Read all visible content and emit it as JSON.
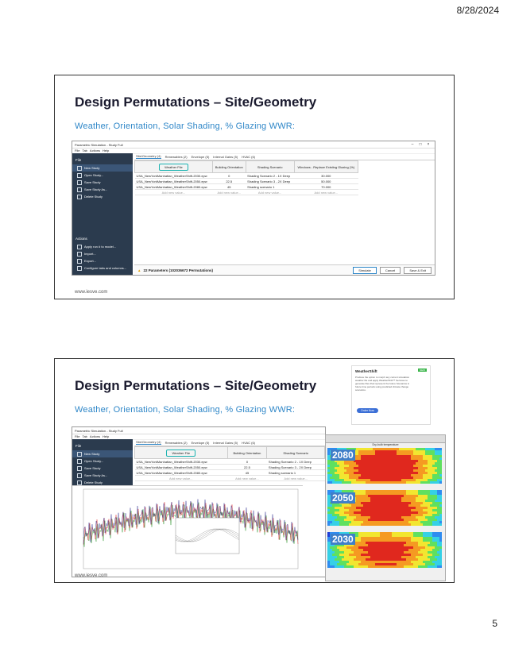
{
  "header": {
    "date": "8/28/2024"
  },
  "page_number": "5",
  "slides": [
    {
      "title": "Design Permutations – Site/Geometry",
      "subtitle": "Weather, Orientation, Solar Shading, % Glazing WWR:",
      "url": "www.iesve.com"
    },
    {
      "title": "Design Permutations – Site/Geometry",
      "subtitle": "Weather, Orientation, Solar Shading, % Glazing WWR:",
      "url": "www.iesve.com"
    }
  ],
  "app": {
    "title": "Parametric Simulation - Study Full",
    "menu": [
      "File",
      "Tab",
      "Actions",
      "Help"
    ],
    "sidebar_header": "File",
    "sidebar_items": [
      "New Study",
      "Open Study...",
      "Save Study",
      "Save Study As...",
      "Delete Study"
    ],
    "actions_header": "Actions",
    "action_items": [
      "Apply run # to model...",
      "Import...",
      "Export...",
      "Configure tabs and columns..."
    ],
    "tabs": [
      "Site/Geometry (4)",
      "Renewables (2)",
      "Envelope (5)",
      "Internal Gains (5)",
      "HVAC (6)"
    ],
    "columns": [
      "Weather File",
      "Building Orientation",
      "Shading Scenario",
      "Windows - Replace Existing Glazing (%)"
    ],
    "rows": [
      [
        "USA_NewYorkManhattan_WeatherShift-2030.epw",
        "0",
        "Shading Scenario 2 - 1X Deep",
        "30.000"
      ],
      [
        "USA_NewYorkManhattan_WeatherShift-2050.epw",
        "22.5",
        "Shading Scenario 3 - 2X Deep",
        "50.000"
      ],
      [
        "USA_NewYorkManhattan_WeatherShift-2080.epw",
        "45",
        "Shading scenario 1",
        "70.000"
      ]
    ],
    "add_new": "Add new value...",
    "status": "22 Parameters (102036672 Permutations)",
    "buttons": {
      "simulate": "Simulate",
      "cancel": "Cancel",
      "save_exit": "Save & Exit"
    }
  },
  "weathershift": {
    "title": "WeatherShift",
    "body": "Produce the option to morph any current simulation weather file and apply WeatherShift™ Services to generate files that represent the future Scenarios in future time periods using predicted climate change scenarios.",
    "button": "Order Now"
  },
  "heatmaps": {
    "years": [
      "2080",
      "2050",
      "2030"
    ],
    "titlebar": "Dry-bulb temperature"
  },
  "colors": {
    "accent": "#2f87c8",
    "highlight": "#1bb3b1",
    "sidebar": "#2b3b4e"
  }
}
